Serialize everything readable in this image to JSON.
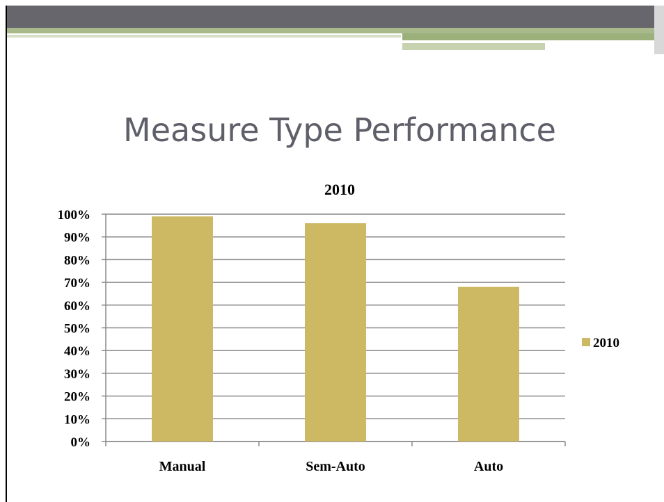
{
  "slide": {
    "title": "Measure Type Performance"
  },
  "chart_data": {
    "type": "bar",
    "title": "2010",
    "categories": [
      "Manual",
      "Sem-Auto",
      "Auto"
    ],
    "series": [
      {
        "name": "2010",
        "color": "#cdb964",
        "values": [
          99,
          96,
          68
        ]
      }
    ],
    "ylim": [
      0,
      100
    ],
    "yticks": [
      {
        "value": 0,
        "label": "0%"
      },
      {
        "value": 10,
        "label": "10%"
      },
      {
        "value": 20,
        "label": "20%"
      },
      {
        "value": 30,
        "label": "30%"
      },
      {
        "value": 40,
        "label": "40%"
      },
      {
        "value": 50,
        "label": "50%"
      },
      {
        "value": 60,
        "label": "60%"
      },
      {
        "value": 70,
        "label": "70%"
      },
      {
        "value": 80,
        "label": "80%"
      },
      {
        "value": 90,
        "label": "90%"
      },
      {
        "value": 100,
        "label": "100%"
      }
    ],
    "grid": true,
    "legend": "right"
  }
}
